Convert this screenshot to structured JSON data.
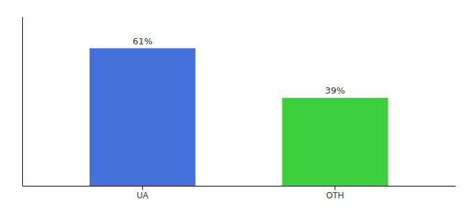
{
  "chart_data": {
    "type": "bar",
    "categories": [
      "UA",
      "OTH"
    ],
    "values": [
      61,
      39
    ],
    "value_labels": [
      "61%",
      "39%"
    ],
    "colors": [
      "#4472db",
      "#3ecf3e"
    ],
    "ylim": [
      0,
      75
    ],
    "grid": false,
    "data_labels": true,
    "tick_labels": "x"
  }
}
